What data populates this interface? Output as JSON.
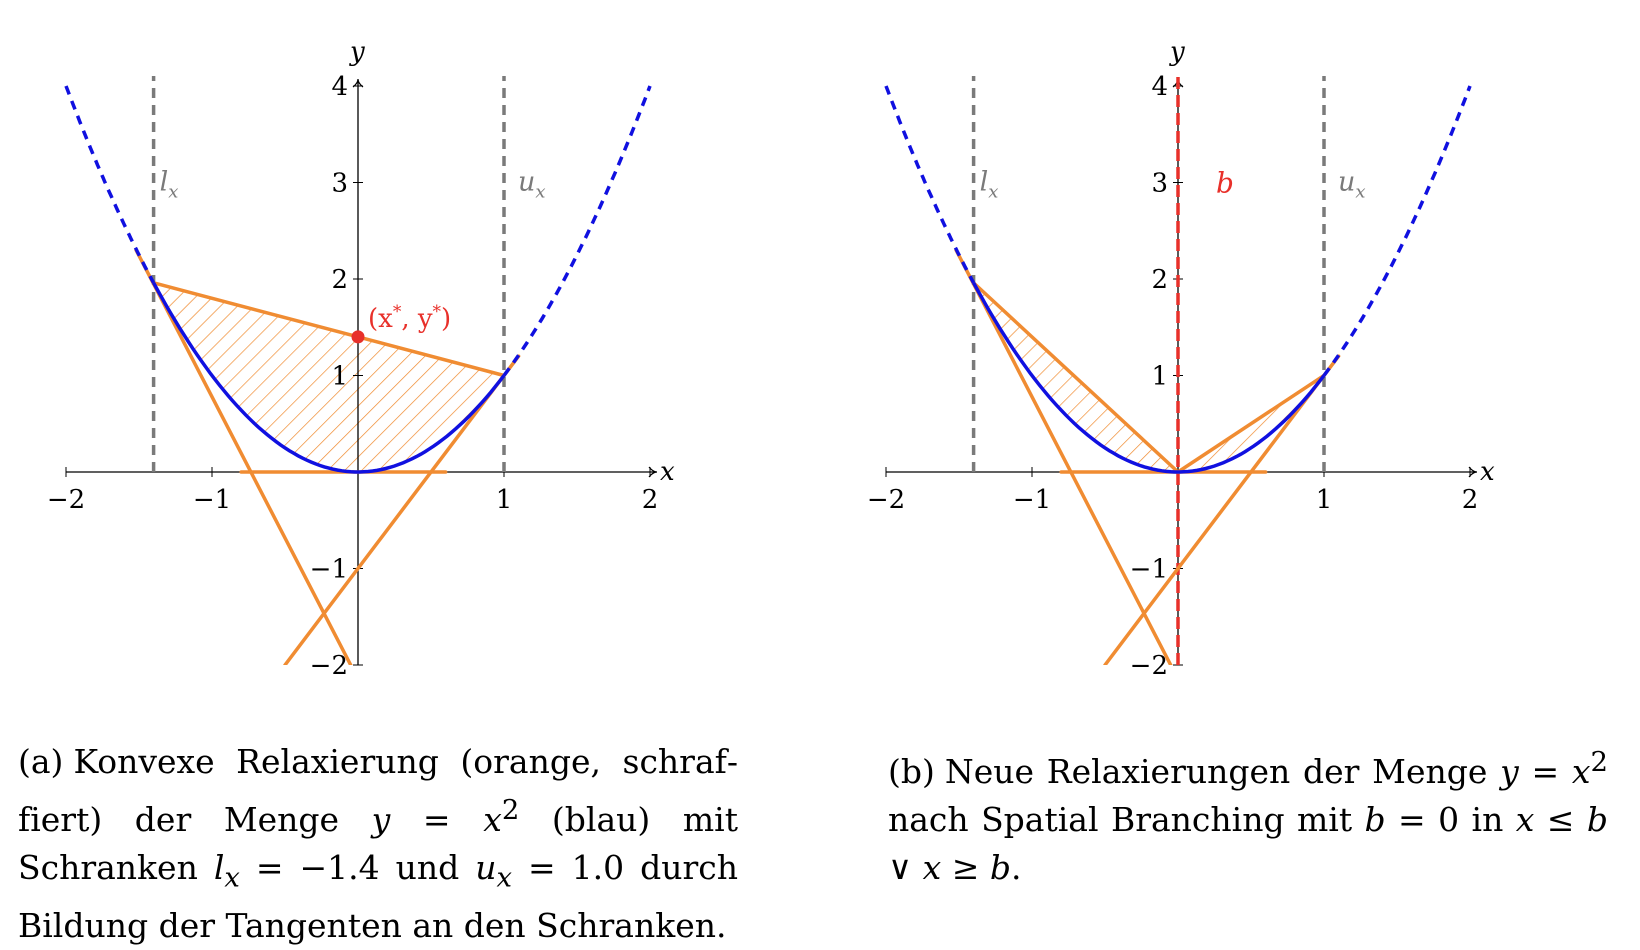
{
  "chart_data": [
    {
      "type": "line",
      "panel": "a",
      "xlabel": "x",
      "ylabel": "y",
      "xlim": [
        -2,
        2
      ],
      "ylim": [
        -2,
        4
      ],
      "x_ticks": [
        "−2",
        "−1",
        "1",
        "2"
      ],
      "y_ticks": [
        "−2",
        "−1",
        "1",
        "2",
        "3",
        "4"
      ],
      "bounds": {
        "l_x": -1.4,
        "u_x": 1.0,
        "l_label": "l",
        "l_sub": "x",
        "u_label": "u",
        "u_sub": "x"
      },
      "series": [
        {
          "name": "y = x^2",
          "color": "#1010e0",
          "style": "solid",
          "x_range": [
            -1.4,
            1.0
          ]
        },
        {
          "name": "y = x^2 (outside bounds)",
          "color": "#1010e0",
          "style": "dashed",
          "x_ranges": [
            [
              -2,
              -1.4
            ],
            [
              1.0,
              2
            ]
          ]
        },
        {
          "name": "secant",
          "color": "#f08c32",
          "x1": -1.4,
          "y1": 1.96,
          "x2": 1.0,
          "y2": 1.0
        },
        {
          "name": "tangent at l_x",
          "color": "#f08c32",
          "x1": -1.52,
          "y1": 2.3,
          "x2": -0.05,
          "y2": -2.0
        },
        {
          "name": "tangent at u_x",
          "color": "#f08c32",
          "x1": -0.5,
          "y1": -2.0,
          "x2": 1.1,
          "y2": 1.2
        },
        {
          "name": "y = 0 bound",
          "color": "#f08c32",
          "x1": -0.8,
          "y1": 0,
          "x2": 0.6,
          "y2": 0
        }
      ],
      "hatched_region": "convex relaxation",
      "point": {
        "x": 0,
        "y": 1.4,
        "label_main": "(x",
        "label_sup1": "*",
        "label_mid": ", y",
        "label_sup2": "*",
        "label_end": ")",
        "color": "#e8302a"
      },
      "colors": {
        "curve": "#1010e0",
        "relaxation": "#f08c32",
        "bounds": "#7a7a7a",
        "point": "#e8302a"
      }
    },
    {
      "type": "line",
      "panel": "b",
      "xlabel": "x",
      "ylabel": "y",
      "xlim": [
        -2,
        2
      ],
      "ylim": [
        -2,
        4
      ],
      "x_ticks": [
        "−2",
        "−1",
        "1",
        "2"
      ],
      "y_ticks": [
        "−2",
        "−1",
        "1",
        "2",
        "3",
        "4"
      ],
      "bounds": {
        "l_x": -1.4,
        "u_x": 1.0,
        "l_label": "l",
        "l_sub": "x",
        "u_label": "u",
        "u_sub": "x"
      },
      "branch": {
        "b": 0,
        "label": "b",
        "color": "#e8302a"
      },
      "series": [
        {
          "name": "y = x^2",
          "color": "#1010e0",
          "style": "solid",
          "x_range": [
            -1.4,
            1.0
          ]
        },
        {
          "name": "y = x^2 (outside bounds)",
          "color": "#1010e0",
          "style": "dashed",
          "x_ranges": [
            [
              -2,
              -1.4
            ],
            [
              1.0,
              2
            ]
          ]
        },
        {
          "name": "secant left",
          "color": "#f08c32",
          "x1": -1.4,
          "y1": 1.96,
          "x2": 0,
          "y2": 0
        },
        {
          "name": "secant right",
          "color": "#f08c32",
          "x1": 0,
          "y1": 0,
          "x2": 1.0,
          "y2": 1.0
        },
        {
          "name": "tangent at l_x",
          "color": "#f08c32",
          "x1": -1.52,
          "y1": 2.3,
          "x2": -0.05,
          "y2": -2.0
        },
        {
          "name": "tangent at u_x",
          "color": "#f08c32",
          "x1": -0.5,
          "y1": -2.0,
          "x2": 1.1,
          "y2": 1.2
        },
        {
          "name": "y = 0 bound",
          "color": "#f08c32",
          "x1": -0.8,
          "y1": 0,
          "x2": 0.6,
          "y2": 0
        }
      ],
      "hatched_region": "two relaxations",
      "colors": {
        "curve": "#1010e0",
        "relaxation": "#f08c32",
        "bounds": "#7a7a7a",
        "branch": "#e8302a"
      }
    }
  ],
  "captions": {
    "a": {
      "label": "(a)",
      "t1": "Konvexe Relaxierung (orange, schraf­fiert) der Menge ",
      "y": "y",
      "eq": " = ",
      "x": "x",
      "sup": "2",
      "t2": " (blau) mit Schranken ",
      "lx": "l",
      "lxs": "x",
      "t3": " = −1.4 und ",
      "ux": "u",
      "uxs": "x",
      "t4": " = 1.0 durch Bildung der Tangenten an den Schranken."
    },
    "b": {
      "label": "(b)",
      "t1": "Neue Relaxierungen der Menge ",
      "y": "y",
      "eq": " = ",
      "x": "x",
      "sup": "2",
      "t2": " nach Spatial Branching mit ",
      "b": "b",
      "t3": " = 0 in ",
      "expr": "x ≤ b ∨ x ≥ b",
      "t4": "."
    }
  }
}
